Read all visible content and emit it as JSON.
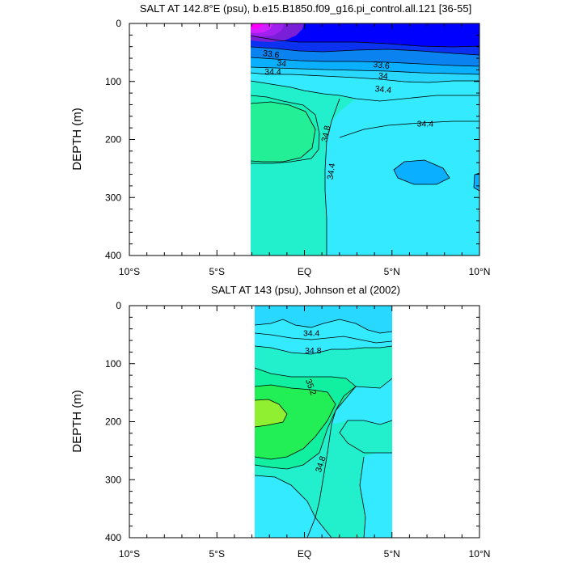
{
  "chart_data": [
    {
      "type": "contour",
      "title": "SALT AT 142.8°E (psu), b.e15.B1850.f09_g16.pi_control.all.121 [36-55]",
      "ylabel": "DEPTH (m)",
      "xlim": [
        -10,
        10
      ],
      "ylim": [
        400,
        0
      ],
      "x_ticks": [
        -10,
        -5,
        0,
        5,
        10
      ],
      "x_ticklabels": [
        "10°S",
        "5°S",
        "EQ",
        "5°N",
        "10°N"
      ],
      "y_ticks": [
        0,
        100,
        200,
        300,
        400
      ],
      "y_ticklabels": [
        "0",
        "100",
        "200",
        "300",
        "400"
      ],
      "data_extent_lat": [
        -3.1,
        10
      ],
      "contour_labels": [
        {
          "value": "33.6",
          "lat": -1.9,
          "depth": 52,
          "rotation": 8
        },
        {
          "value": "34",
          "lat": -1.3,
          "depth": 68,
          "rotation": 8
        },
        {
          "value": "34.4",
          "lat": -1.8,
          "depth": 82,
          "rotation": 0
        },
        {
          "value": "33.6",
          "lat": 4.4,
          "depth": 71,
          "rotation": 6
        },
        {
          "value": "34",
          "lat": 4.5,
          "depth": 90,
          "rotation": 4
        },
        {
          "value": "34.4",
          "lat": 4.5,
          "depth": 113,
          "rotation": 6
        },
        {
          "value": "34.4",
          "lat": 6.9,
          "depth": 172,
          "rotation": 0
        },
        {
          "value": "34.8",
          "lat": 1.2,
          "depth": 190,
          "rotation": -78
        },
        {
          "value": "34.4",
          "lat": 1.5,
          "depth": 255,
          "rotation": -82
        }
      ]
    },
    {
      "type": "contour",
      "title": "SALT AT 143 (psu), Johnson et al (2002)",
      "ylabel": "DEPTH (m)",
      "xlim": [
        -10,
        10
      ],
      "ylim": [
        400,
        0
      ],
      "x_ticks": [
        -10,
        -5,
        0,
        5,
        10
      ],
      "x_ticklabels": [
        "10°S",
        "5°S",
        "EQ",
        "5°N",
        "10°N"
      ],
      "y_ticks": [
        0,
        100,
        200,
        300,
        400
      ],
      "y_ticklabels": [
        "0",
        "100",
        "200",
        "300",
        "400"
      ],
      "data_extent_lat": [
        -2.8,
        5
      ],
      "contour_labels": [
        {
          "value": "34.4",
          "lat": 0.4,
          "depth": 47,
          "rotation": 0
        },
        {
          "value": "34.8",
          "lat": 0.5,
          "depth": 77,
          "rotation": 0
        },
        {
          "value": "35.2",
          "lat": 0.4,
          "depth": 140,
          "rotation": 70
        },
        {
          "value": "34.8",
          "lat": 0.9,
          "depth": 273,
          "rotation": -72
        }
      ]
    }
  ],
  "colors": {
    "magenta": "#ff00ff",
    "purple": "#a020f0",
    "violet": "#7a1fd8",
    "blue": "#0000ff",
    "deep_blue": "#0a32f0",
    "mid_blue": "#0a82f0",
    "sky_blue": "#0ab0ff",
    "light_blue": "#28d8ff",
    "cyan": "#33eaff",
    "aqua_green": "#22f0cc",
    "sea_green": "#10f0a0",
    "green": "#22ee55",
    "lime": "#90ef30"
  }
}
